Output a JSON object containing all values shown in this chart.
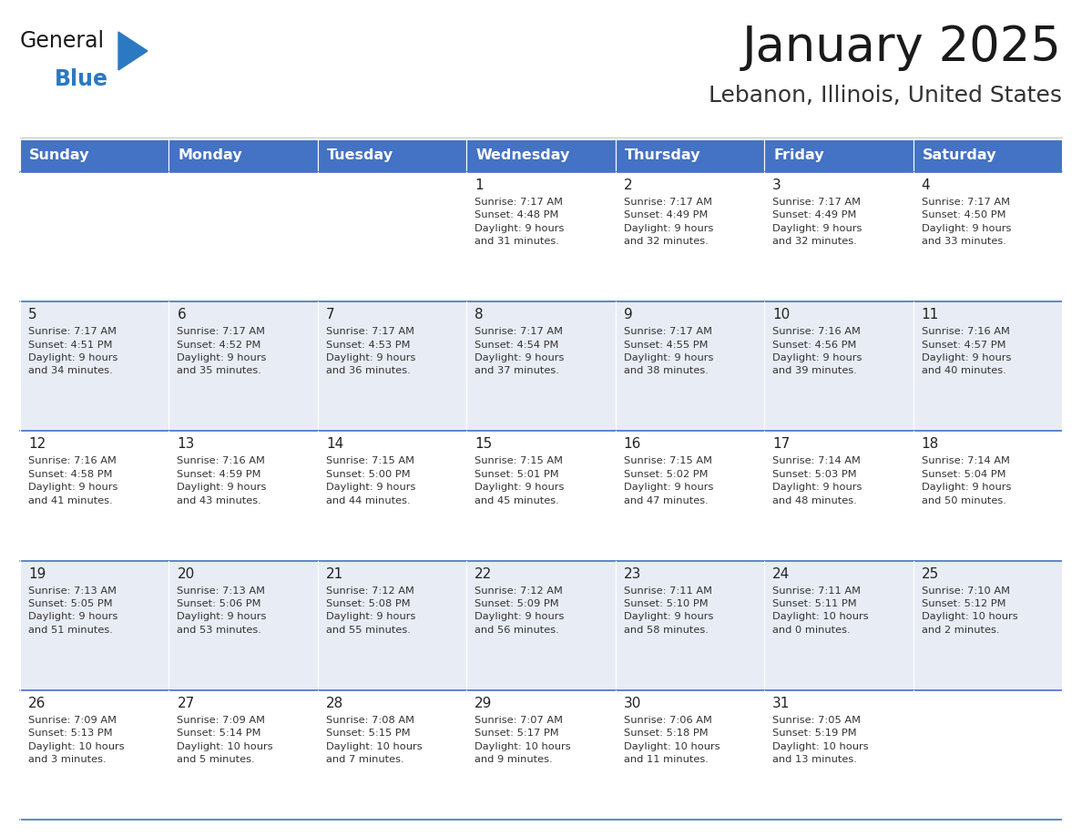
{
  "title": "January 2025",
  "subtitle": "Lebanon, Illinois, United States",
  "header_color": "#4472C4",
  "header_text_color": "#FFFFFF",
  "cell_bg_even": "#FFFFFF",
  "cell_bg_odd": "#E8EDF5",
  "border_color": "#4472C4",
  "text_color": "#333333",
  "info_text_color": "#333333",
  "days_of_week": [
    "Sunday",
    "Monday",
    "Tuesday",
    "Wednesday",
    "Thursday",
    "Friday",
    "Saturday"
  ],
  "calendar_data": [
    [
      {
        "day": "",
        "info": ""
      },
      {
        "day": "",
        "info": ""
      },
      {
        "day": "",
        "info": ""
      },
      {
        "day": "1",
        "info": "Sunrise: 7:17 AM\nSunset: 4:48 PM\nDaylight: 9 hours\nand 31 minutes."
      },
      {
        "day": "2",
        "info": "Sunrise: 7:17 AM\nSunset: 4:49 PM\nDaylight: 9 hours\nand 32 minutes."
      },
      {
        "day": "3",
        "info": "Sunrise: 7:17 AM\nSunset: 4:49 PM\nDaylight: 9 hours\nand 32 minutes."
      },
      {
        "day": "4",
        "info": "Sunrise: 7:17 AM\nSunset: 4:50 PM\nDaylight: 9 hours\nand 33 minutes."
      }
    ],
    [
      {
        "day": "5",
        "info": "Sunrise: 7:17 AM\nSunset: 4:51 PM\nDaylight: 9 hours\nand 34 minutes."
      },
      {
        "day": "6",
        "info": "Sunrise: 7:17 AM\nSunset: 4:52 PM\nDaylight: 9 hours\nand 35 minutes."
      },
      {
        "day": "7",
        "info": "Sunrise: 7:17 AM\nSunset: 4:53 PM\nDaylight: 9 hours\nand 36 minutes."
      },
      {
        "day": "8",
        "info": "Sunrise: 7:17 AM\nSunset: 4:54 PM\nDaylight: 9 hours\nand 37 minutes."
      },
      {
        "day": "9",
        "info": "Sunrise: 7:17 AM\nSunset: 4:55 PM\nDaylight: 9 hours\nand 38 minutes."
      },
      {
        "day": "10",
        "info": "Sunrise: 7:16 AM\nSunset: 4:56 PM\nDaylight: 9 hours\nand 39 minutes."
      },
      {
        "day": "11",
        "info": "Sunrise: 7:16 AM\nSunset: 4:57 PM\nDaylight: 9 hours\nand 40 minutes."
      }
    ],
    [
      {
        "day": "12",
        "info": "Sunrise: 7:16 AM\nSunset: 4:58 PM\nDaylight: 9 hours\nand 41 minutes."
      },
      {
        "day": "13",
        "info": "Sunrise: 7:16 AM\nSunset: 4:59 PM\nDaylight: 9 hours\nand 43 minutes."
      },
      {
        "day": "14",
        "info": "Sunrise: 7:15 AM\nSunset: 5:00 PM\nDaylight: 9 hours\nand 44 minutes."
      },
      {
        "day": "15",
        "info": "Sunrise: 7:15 AM\nSunset: 5:01 PM\nDaylight: 9 hours\nand 45 minutes."
      },
      {
        "day": "16",
        "info": "Sunrise: 7:15 AM\nSunset: 5:02 PM\nDaylight: 9 hours\nand 47 minutes."
      },
      {
        "day": "17",
        "info": "Sunrise: 7:14 AM\nSunset: 5:03 PM\nDaylight: 9 hours\nand 48 minutes."
      },
      {
        "day": "18",
        "info": "Sunrise: 7:14 AM\nSunset: 5:04 PM\nDaylight: 9 hours\nand 50 minutes."
      }
    ],
    [
      {
        "day": "19",
        "info": "Sunrise: 7:13 AM\nSunset: 5:05 PM\nDaylight: 9 hours\nand 51 minutes."
      },
      {
        "day": "20",
        "info": "Sunrise: 7:13 AM\nSunset: 5:06 PM\nDaylight: 9 hours\nand 53 minutes."
      },
      {
        "day": "21",
        "info": "Sunrise: 7:12 AM\nSunset: 5:08 PM\nDaylight: 9 hours\nand 55 minutes."
      },
      {
        "day": "22",
        "info": "Sunrise: 7:12 AM\nSunset: 5:09 PM\nDaylight: 9 hours\nand 56 minutes."
      },
      {
        "day": "23",
        "info": "Sunrise: 7:11 AM\nSunset: 5:10 PM\nDaylight: 9 hours\nand 58 minutes."
      },
      {
        "day": "24",
        "info": "Sunrise: 7:11 AM\nSunset: 5:11 PM\nDaylight: 10 hours\nand 0 minutes."
      },
      {
        "day": "25",
        "info": "Sunrise: 7:10 AM\nSunset: 5:12 PM\nDaylight: 10 hours\nand 2 minutes."
      }
    ],
    [
      {
        "day": "26",
        "info": "Sunrise: 7:09 AM\nSunset: 5:13 PM\nDaylight: 10 hours\nand 3 minutes."
      },
      {
        "day": "27",
        "info": "Sunrise: 7:09 AM\nSunset: 5:14 PM\nDaylight: 10 hours\nand 5 minutes."
      },
      {
        "day": "28",
        "info": "Sunrise: 7:08 AM\nSunset: 5:15 PM\nDaylight: 10 hours\nand 7 minutes."
      },
      {
        "day": "29",
        "info": "Sunrise: 7:07 AM\nSunset: 5:17 PM\nDaylight: 10 hours\nand 9 minutes."
      },
      {
        "day": "30",
        "info": "Sunrise: 7:06 AM\nSunset: 5:18 PM\nDaylight: 10 hours\nand 11 minutes."
      },
      {
        "day": "31",
        "info": "Sunrise: 7:05 AM\nSunset: 5:19 PM\nDaylight: 10 hours\nand 13 minutes."
      },
      {
        "day": "",
        "info": ""
      }
    ]
  ],
  "logo_general_color": "#1a1a1a",
  "logo_blue_color": "#2B79C2",
  "logo_triangle_color": "#2B79C2",
  "fig_width": 11.88,
  "fig_height": 9.18,
  "dpi": 100
}
